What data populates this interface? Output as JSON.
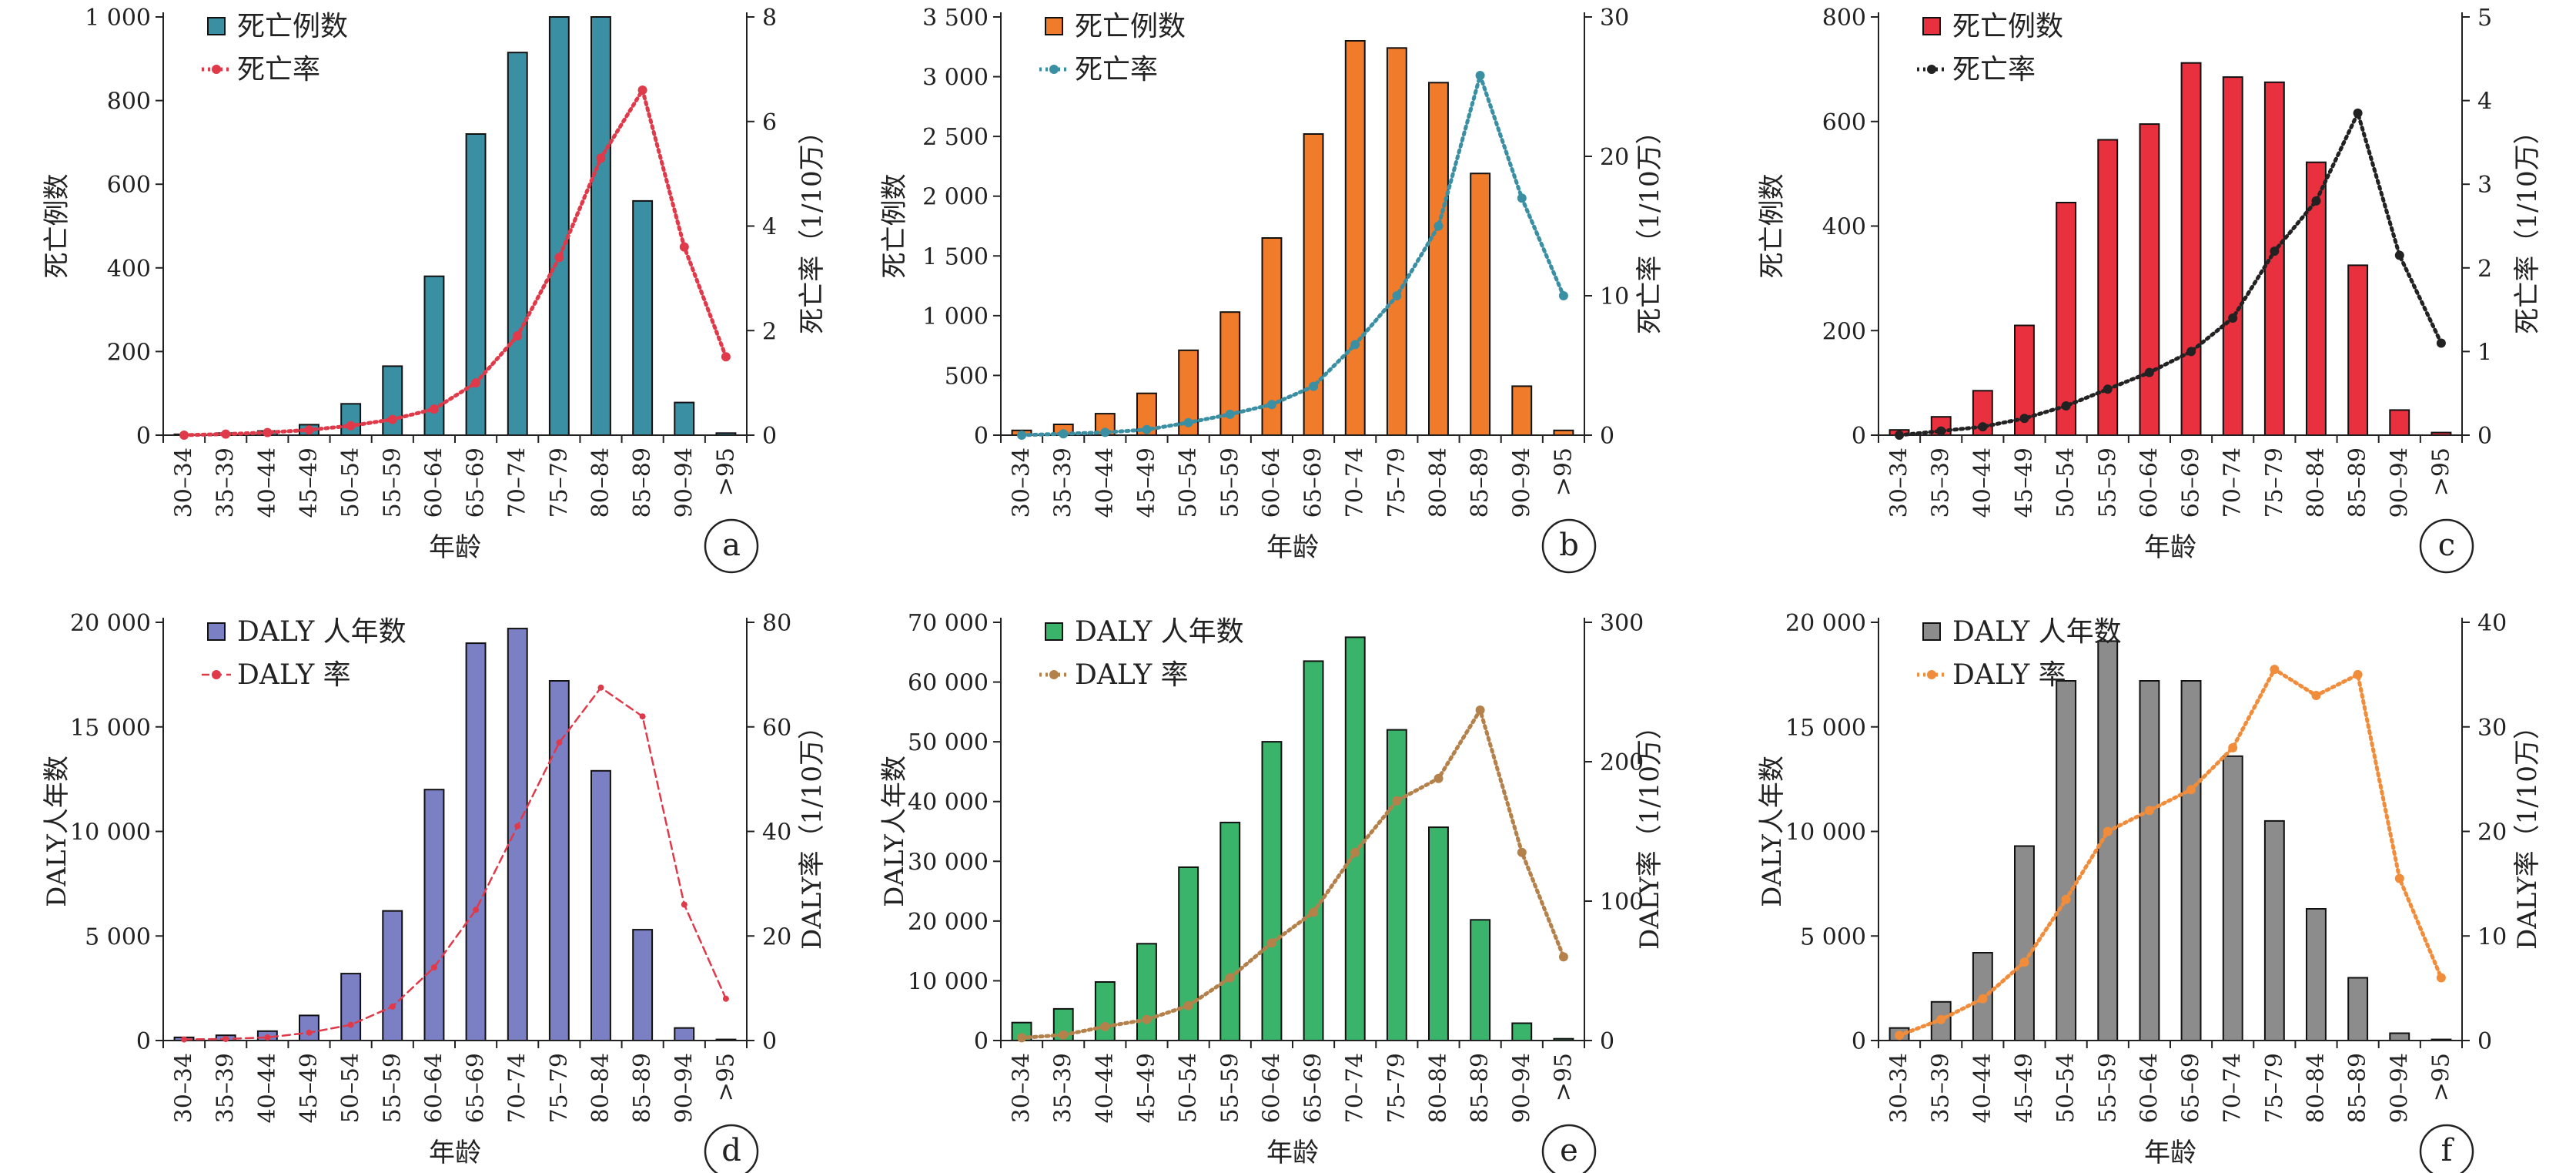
{
  "chart_data": [
    {
      "id": "a",
      "panel_label": "a",
      "type": "bar",
      "categories": [
        "30–34",
        "35–39",
        "40–44",
        "45–49",
        "50–54",
        "55–59",
        "60–64",
        "65–69",
        "70–74",
        "75–79",
        "80–84",
        "85–89",
        "90–94",
        ">95"
      ],
      "xlabel": "年龄",
      "ylabel": "死亡例数",
      "y2label": "死亡率（1/10万）",
      "ylim": [
        0,
        1000
      ],
      "y2lim": [
        0,
        8
      ],
      "yticks": [
        0,
        200,
        400,
        600,
        800,
        1000
      ],
      "ytick_labels": [
        "0",
        "200",
        "400",
        "600",
        "800",
        "1 000"
      ],
      "y2ticks": [
        0,
        2,
        4,
        6,
        8
      ],
      "y2tick_labels": [
        "0",
        "2",
        "4",
        "6",
        "8"
      ],
      "legend_position": "top-left",
      "bar_series": {
        "name": "死亡例数",
        "color": "#3a8fa3",
        "values": [
          2,
          5,
          10,
          25,
          75,
          165,
          380,
          720,
          915,
          1000,
          1000,
          560,
          78,
          5
        ]
      },
      "line_series": {
        "name": "死亡率",
        "color": "#e03a4a",
        "style": "dotted",
        "values": [
          0.0,
          0.02,
          0.05,
          0.1,
          0.18,
          0.3,
          0.5,
          1.0,
          1.9,
          3.4,
          5.3,
          6.6,
          3.6,
          1.5
        ]
      }
    },
    {
      "id": "b",
      "panel_label": "b",
      "type": "bar",
      "categories": [
        "30–34",
        "35–39",
        "40–44",
        "45–49",
        "50–54",
        "55–59",
        "60–64",
        "65–69",
        "70–74",
        "75–79",
        "80–84",
        "85–89",
        "90–94",
        ">95"
      ],
      "xlabel": "年龄",
      "ylabel": "死亡例数",
      "y2label": "死亡率（1/10万）",
      "ylim": [
        0,
        3500
      ],
      "y2lim": [
        0,
        30
      ],
      "yticks": [
        0,
        500,
        1000,
        1500,
        2000,
        2500,
        3000,
        3500
      ],
      "ytick_labels": [
        "0",
        "500",
        "1 000",
        "1 500",
        "2 000",
        "2 500",
        "3 000",
        "3 500"
      ],
      "y2ticks": [
        0,
        10,
        20,
        30
      ],
      "y2tick_labels": [
        "0",
        "10",
        "20",
        "30"
      ],
      "legend_position": "top-left",
      "bar_series": {
        "name": "死亡例数",
        "color": "#f07b2a",
        "values": [
          40,
          90,
          180,
          350,
          710,
          1030,
          1650,
          2520,
          3300,
          3240,
          2950,
          2190,
          410,
          40
        ]
      },
      "line_series": {
        "name": "死亡率",
        "color": "#3a8fa3",
        "style": "dotted",
        "values": [
          0.0,
          0.1,
          0.2,
          0.4,
          0.9,
          1.5,
          2.2,
          3.5,
          6.5,
          10.0,
          15.0,
          25.8,
          17.0,
          10.0
        ]
      }
    },
    {
      "id": "c",
      "panel_label": "c",
      "type": "bar",
      "categories": [
        "30–34",
        "35–39",
        "40–44",
        "45–49",
        "50–54",
        "55–59",
        "60–64",
        "65–69",
        "70–74",
        "75–79",
        "80–84",
        "85–89",
        "90–94",
        ">95"
      ],
      "xlabel": "年龄",
      "ylabel": "死亡例数",
      "y2label": "死亡率（1/10万）",
      "ylim": [
        0,
        800
      ],
      "y2lim": [
        0,
        5
      ],
      "yticks": [
        0,
        200,
        400,
        600,
        800
      ],
      "ytick_labels": [
        "0",
        "200",
        "400",
        "600",
        "800"
      ],
      "y2ticks": [
        0,
        1,
        2,
        3,
        4,
        5
      ],
      "y2tick_labels": [
        "0",
        "1",
        "2",
        "3",
        "4",
        "5"
      ],
      "legend_position": "top-left",
      "bar_series": {
        "name": "死亡例数",
        "color": "#e8303f",
        "values": [
          10,
          35,
          85,
          210,
          445,
          565,
          595,
          712,
          685,
          675,
          522,
          325,
          48,
          5
        ]
      },
      "line_series": {
        "name": "死亡率",
        "color": "#222222",
        "style": "dotted",
        "values": [
          0.0,
          0.05,
          0.1,
          0.2,
          0.35,
          0.55,
          0.75,
          1.0,
          1.4,
          2.2,
          2.8,
          3.85,
          2.15,
          1.1
        ]
      }
    },
    {
      "id": "d",
      "panel_label": "d",
      "type": "bar",
      "categories": [
        "30–34",
        "35–39",
        "40–44",
        "45–49",
        "50–54",
        "55–59",
        "60–64",
        "65–69",
        "70–74",
        "75–79",
        "80–84",
        "85–89",
        "90–94",
        ">95"
      ],
      "xlabel": "年龄",
      "ylabel": "DALY人年数",
      "y2label": "DALY率（1/10万）",
      "ylim": [
        0,
        20000
      ],
      "y2lim": [
        0,
        80
      ],
      "yticks": [
        0,
        5000,
        10000,
        15000,
        20000
      ],
      "ytick_labels": [
        "0",
        "5 000",
        "10 000",
        "15 000",
        "20 000"
      ],
      "y2ticks": [
        0,
        20,
        40,
        60,
        80
      ],
      "y2tick_labels": [
        "0",
        "20",
        "40",
        "60",
        "80"
      ],
      "legend_position": "top-left",
      "bar_series": {
        "name": "DALY 人年数",
        "color": "#7b7fc4",
        "values": [
          150,
          250,
          450,
          1200,
          3200,
          6200,
          12000,
          19000,
          19700,
          17200,
          12900,
          5300,
          600,
          50
        ]
      },
      "line_series": {
        "name": "DALY 率",
        "color": "#e03a4a",
        "style": "dashed",
        "values": [
          0.2,
          0.3,
          0.6,
          1.5,
          3.0,
          6.5,
          14.0,
          25.0,
          41.0,
          57.0,
          67.5,
          62.0,
          26.0,
          8.0
        ]
      }
    },
    {
      "id": "e",
      "panel_label": "e",
      "type": "bar",
      "categories": [
        "30–34",
        "35–39",
        "40–44",
        "45–49",
        "50–54",
        "55–59",
        "60–64",
        "65–69",
        "70–74",
        "75–79",
        "80–84",
        "85–89",
        "90–94",
        ">95"
      ],
      "xlabel": "年龄",
      "ylabel": "DALY人年数",
      "y2label": "DALY率（1/10万）",
      "ylim": [
        0,
        70000
      ],
      "y2lim": [
        0,
        300
      ],
      "yticks": [
        0,
        10000,
        20000,
        30000,
        40000,
        50000,
        60000,
        70000
      ],
      "ytick_labels": [
        "0",
        "10 000",
        "20 000",
        "30 000",
        "40 000",
        "50 000",
        "60 000",
        "70 000"
      ],
      "y2ticks": [
        0,
        100,
        200,
        300
      ],
      "y2tick_labels": [
        "0",
        "100",
        "200",
        "300"
      ],
      "legend_position": "top-left",
      "bar_series": {
        "name": "DALY 人年数",
        "color": "#3ab46a",
        "values": [
          3000,
          5300,
          9800,
          16200,
          29000,
          36500,
          50000,
          63500,
          67500,
          52000,
          35700,
          20200,
          2900,
          300
        ]
      },
      "line_series": {
        "name": "DALY 率",
        "color": "#b5814a",
        "style": "dotted",
        "values": [
          2,
          4,
          10,
          15,
          25,
          45,
          70,
          92,
          135,
          172,
          188,
          237,
          135,
          60
        ]
      }
    },
    {
      "id": "f",
      "panel_label": "f",
      "type": "bar",
      "categories": [
        "30–34",
        "35–39",
        "40–44",
        "45–49",
        "50–54",
        "55–59",
        "60–64",
        "65–69",
        "70–74",
        "75–79",
        "80–84",
        "85–89",
        "90–94",
        ">95"
      ],
      "xlabel": "年龄",
      "ylabel": "DALY人年数",
      "y2label": "DALY率（1/10万）",
      "ylim": [
        0,
        20000
      ],
      "y2lim": [
        0,
        40
      ],
      "yticks": [
        0,
        5000,
        10000,
        15000,
        20000
      ],
      "ytick_labels": [
        "0",
        "5 000",
        "10 000",
        "15 000",
        "20 000"
      ],
      "y2ticks": [
        0,
        10,
        20,
        30,
        40
      ],
      "y2tick_labels": [
        "0",
        "10",
        "20",
        "30",
        "40"
      ],
      "legend_position": "top-left",
      "bar_series": {
        "name": "DALY 人年数",
        "color": "#8c8c8c",
        "values": [
          600,
          1850,
          4200,
          9300,
          17200,
          19100,
          17200,
          17200,
          13600,
          10500,
          6300,
          3000,
          350,
          50
        ]
      },
      "line_series": {
        "name": "DALY 率",
        "color": "#f08c3a",
        "style": "dotted",
        "values": [
          0.5,
          2.0,
          4.0,
          7.5,
          13.5,
          20.0,
          22.0,
          24.0,
          28.0,
          35.5,
          33.0,
          35.0,
          15.5,
          6.0
        ]
      }
    }
  ]
}
